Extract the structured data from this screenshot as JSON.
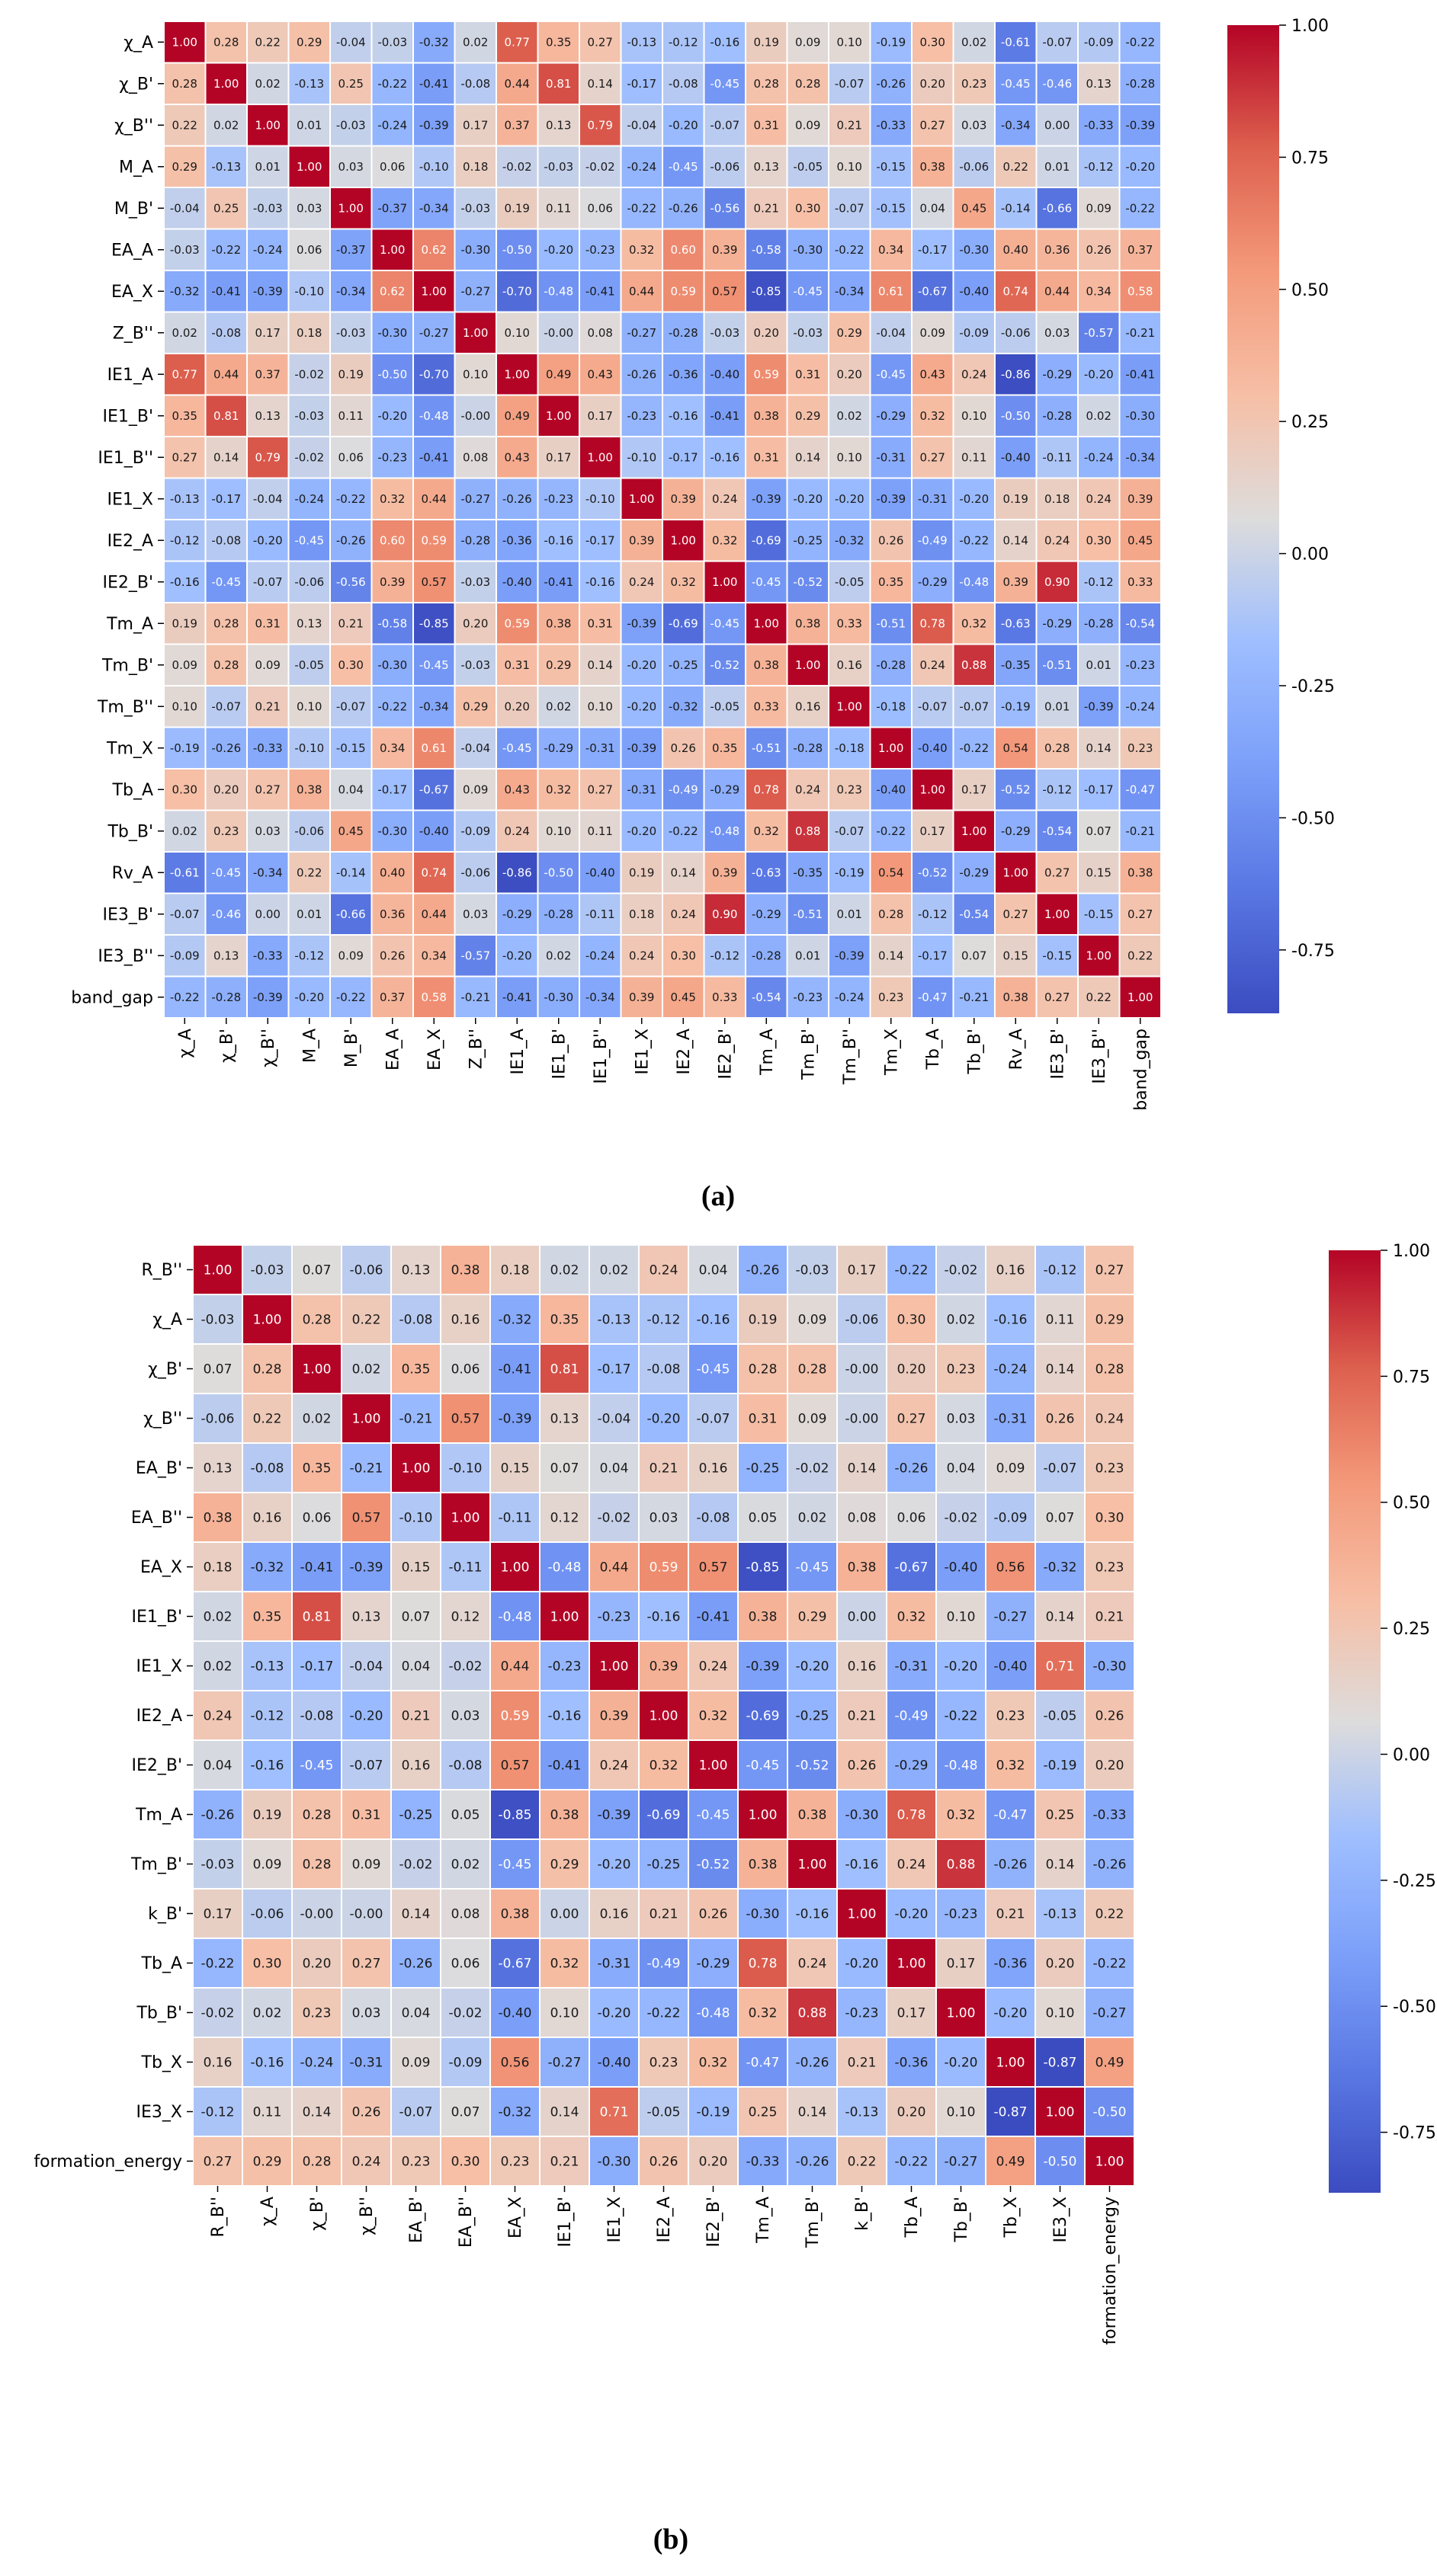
{
  "chart_data": [
    {
      "type": "heatmap",
      "caption": "(a)",
      "labels": [
        "χ_A",
        "χ_B'",
        "χ_B''",
        "M_A",
        "M_B'",
        "EA_A",
        "EA_X",
        "Z_B''",
        "IE1_A",
        "IE1_B'",
        "IE1_B''",
        "IE1_X",
        "IE2_A",
        "IE2_B'",
        "Tm_A",
        "Tm_B'",
        "Tm_B''",
        "Tm_X",
        "Tb_A",
        "Tb_B'",
        "Rv_A",
        "IE3_B'",
        "IE3_B''",
        "band_gap"
      ],
      "matrix": [
        [
          1.0,
          0.28,
          0.22,
          0.29,
          -0.04,
          -0.03,
          -0.32,
          0.02,
          0.77,
          0.35,
          0.27,
          -0.13,
          -0.12,
          -0.16,
          0.19,
          0.09,
          0.1,
          -0.19,
          0.3,
          0.02,
          -0.61,
          -0.07,
          -0.09,
          -0.22
        ],
        [
          0.28,
          1.0,
          0.02,
          -0.13,
          0.25,
          -0.22,
          -0.41,
          -0.08,
          0.44,
          0.81,
          0.14,
          -0.17,
          -0.08,
          -0.45,
          0.28,
          0.28,
          -0.07,
          -0.26,
          0.2,
          0.23,
          -0.45,
          -0.46,
          0.13,
          -0.28
        ],
        [
          0.22,
          0.02,
          1.0,
          0.01,
          -0.03,
          -0.24,
          -0.39,
          0.17,
          0.37,
          0.13,
          0.79,
          -0.04,
          -0.2,
          -0.07,
          0.31,
          0.09,
          0.21,
          -0.33,
          0.27,
          0.03,
          -0.34,
          0.0,
          -0.33,
          -0.39
        ],
        [
          0.29,
          -0.13,
          0.01,
          1.0,
          0.03,
          0.06,
          -0.1,
          0.18,
          -0.02,
          -0.03,
          -0.02,
          -0.24,
          -0.45,
          -0.06,
          0.13,
          -0.05,
          0.1,
          -0.15,
          0.38,
          -0.06,
          0.22,
          0.01,
          -0.12,
          -0.2
        ],
        [
          -0.04,
          0.25,
          -0.03,
          0.03,
          1.0,
          -0.37,
          -0.34,
          -0.03,
          0.19,
          0.11,
          0.06,
          -0.22,
          -0.26,
          -0.56,
          0.21,
          0.3,
          -0.07,
          -0.15,
          0.04,
          0.45,
          -0.14,
          -0.66,
          0.09,
          -0.22
        ],
        [
          -0.03,
          -0.22,
          -0.24,
          0.06,
          -0.37,
          1.0,
          0.62,
          -0.3,
          -0.5,
          -0.2,
          -0.23,
          0.32,
          0.6,
          0.39,
          -0.58,
          -0.3,
          -0.22,
          0.34,
          -0.17,
          -0.3,
          0.4,
          0.36,
          0.26,
          0.37
        ],
        [
          -0.32,
          -0.41,
          -0.39,
          -0.1,
          -0.34,
          0.62,
          1.0,
          -0.27,
          -0.7,
          -0.48,
          -0.41,
          0.44,
          0.59,
          0.57,
          -0.85,
          -0.45,
          -0.34,
          0.61,
          -0.67,
          -0.4,
          0.74,
          0.44,
          0.34,
          0.58
        ],
        [
          0.02,
          -0.08,
          0.17,
          0.18,
          -0.03,
          -0.3,
          -0.27,
          1.0,
          0.1,
          -0.0,
          0.08,
          -0.27,
          -0.28,
          -0.03,
          0.2,
          -0.03,
          0.29,
          -0.04,
          0.09,
          -0.09,
          -0.06,
          0.03,
          -0.57,
          -0.21
        ],
        [
          0.77,
          0.44,
          0.37,
          -0.02,
          0.19,
          -0.5,
          -0.7,
          0.1,
          1.0,
          0.49,
          0.43,
          -0.26,
          -0.36,
          -0.4,
          0.59,
          0.31,
          0.2,
          -0.45,
          0.43,
          0.24,
          -0.86,
          -0.29,
          -0.2,
          -0.41
        ],
        [
          0.35,
          0.81,
          0.13,
          -0.03,
          0.11,
          -0.2,
          -0.48,
          -0.0,
          0.49,
          1.0,
          0.17,
          -0.23,
          -0.16,
          -0.41,
          0.38,
          0.29,
          0.02,
          -0.29,
          0.32,
          0.1,
          -0.5,
          -0.28,
          0.02,
          -0.3
        ],
        [
          0.27,
          0.14,
          0.79,
          -0.02,
          0.06,
          -0.23,
          -0.41,
          0.08,
          0.43,
          0.17,
          1.0,
          -0.1,
          -0.17,
          -0.16,
          0.31,
          0.14,
          0.1,
          -0.31,
          0.27,
          0.11,
          -0.4,
          -0.11,
          -0.24,
          -0.34
        ],
        [
          -0.13,
          -0.17,
          -0.04,
          -0.24,
          -0.22,
          0.32,
          0.44,
          -0.27,
          -0.26,
          -0.23,
          -0.1,
          1.0,
          0.39,
          0.24,
          -0.39,
          -0.2,
          -0.2,
          -0.39,
          -0.31,
          -0.2,
          0.19,
          0.18,
          0.24,
          0.39
        ],
        [
          -0.12,
          -0.08,
          -0.2,
          -0.45,
          -0.26,
          0.6,
          0.59,
          -0.28,
          -0.36,
          -0.16,
          -0.17,
          0.39,
          1.0,
          0.32,
          -0.69,
          -0.25,
          -0.32,
          0.26,
          -0.49,
          -0.22,
          0.14,
          0.24,
          0.3,
          0.45
        ],
        [
          -0.16,
          -0.45,
          -0.07,
          -0.06,
          -0.56,
          0.39,
          0.57,
          -0.03,
          -0.4,
          -0.41,
          -0.16,
          0.24,
          0.32,
          1.0,
          -0.45,
          -0.52,
          -0.05,
          0.35,
          -0.29,
          -0.48,
          0.39,
          0.9,
          -0.12,
          0.33
        ],
        [
          0.19,
          0.28,
          0.31,
          0.13,
          0.21,
          -0.58,
          -0.85,
          0.2,
          0.59,
          0.38,
          0.31,
          -0.39,
          -0.69,
          -0.45,
          1.0,
          0.38,
          0.33,
          -0.51,
          0.78,
          0.32,
          -0.63,
          -0.29,
          -0.28,
          -0.54
        ],
        [
          0.09,
          0.28,
          0.09,
          -0.05,
          0.3,
          -0.3,
          -0.45,
          -0.03,
          0.31,
          0.29,
          0.14,
          -0.2,
          -0.25,
          -0.52,
          0.38,
          1.0,
          0.16,
          -0.28,
          0.24,
          0.88,
          -0.35,
          -0.51,
          0.01,
          -0.23
        ],
        [
          0.1,
          -0.07,
          0.21,
          0.1,
          -0.07,
          -0.22,
          -0.34,
          0.29,
          0.2,
          0.02,
          0.1,
          -0.2,
          -0.32,
          -0.05,
          0.33,
          0.16,
          1.0,
          -0.18,
          -0.07,
          -0.07,
          -0.19,
          0.01,
          -0.39,
          -0.24
        ],
        [
          -0.19,
          -0.26,
          -0.33,
          -0.1,
          -0.15,
          0.34,
          0.61,
          -0.04,
          -0.45,
          -0.29,
          -0.31,
          -0.39,
          0.26,
          0.35,
          -0.51,
          -0.28,
          -0.18,
          1.0,
          -0.4,
          -0.22,
          0.54,
          0.28,
          0.14,
          0.23
        ],
        [
          0.3,
          0.2,
          0.27,
          0.38,
          0.04,
          -0.17,
          -0.67,
          0.09,
          0.43,
          0.32,
          0.27,
          -0.31,
          -0.49,
          -0.29,
          0.78,
          0.24,
          0.23,
          -0.4,
          1.0,
          0.17,
          -0.52,
          -0.12,
          -0.17,
          -0.47
        ],
        [
          0.02,
          0.23,
          0.03,
          -0.06,
          0.45,
          -0.3,
          -0.4,
          -0.09,
          0.24,
          0.1,
          0.11,
          -0.2,
          -0.22,
          -0.48,
          0.32,
          0.88,
          -0.07,
          -0.22,
          0.17,
          1.0,
          -0.29,
          -0.54,
          0.07,
          -0.21
        ],
        [
          -0.61,
          -0.45,
          -0.34,
          0.22,
          -0.14,
          0.4,
          0.74,
          -0.06,
          -0.86,
          -0.5,
          -0.4,
          0.19,
          0.14,
          0.39,
          -0.63,
          -0.35,
          -0.19,
          0.54,
          -0.52,
          -0.29,
          1.0,
          0.27,
          0.15,
          0.38
        ],
        [
          -0.07,
          -0.46,
          0.0,
          0.01,
          -0.66,
          0.36,
          0.44,
          0.03,
          -0.29,
          -0.28,
          -0.11,
          0.18,
          0.24,
          0.9,
          -0.29,
          -0.51,
          0.01,
          0.28,
          -0.12,
          -0.54,
          0.27,
          1.0,
          -0.15,
          0.27
        ],
        [
          -0.09,
          0.13,
          -0.33,
          -0.12,
          0.09,
          0.26,
          0.34,
          -0.57,
          -0.2,
          0.02,
          -0.24,
          0.24,
          0.3,
          -0.12,
          -0.28,
          0.01,
          -0.39,
          0.14,
          -0.17,
          0.07,
          0.15,
          -0.15,
          1.0,
          0.22
        ],
        [
          -0.22,
          -0.28,
          -0.39,
          -0.2,
          -0.22,
          0.37,
          0.58,
          -0.21,
          -0.41,
          -0.3,
          -0.34,
          0.39,
          0.45,
          0.33,
          -0.54,
          -0.23,
          -0.24,
          0.23,
          -0.47,
          -0.21,
          0.38,
          0.27,
          0.22,
          1.0
        ]
      ],
      "colorbar": {
        "range": [
          -0.87,
          1.0
        ],
        "ticks": [
          1.0,
          0.75,
          0.5,
          0.25,
          0.0,
          -0.25,
          -0.5,
          -0.75
        ],
        "colormap": "coolwarm"
      }
    },
    {
      "type": "heatmap",
      "caption": "(b)",
      "labels": [
        "R_B''",
        "χ_A",
        "χ_B'",
        "χ_B''",
        "EA_B'",
        "EA_B''",
        "EA_X",
        "IE1_B'",
        "IE1_X",
        "IE2_A",
        "IE2_B'",
        "Tm_A",
        "Tm_B'",
        "k_B'",
        "Tb_A",
        "Tb_B'",
        "Tb_X",
        "IE3_X",
        "formation_energy"
      ],
      "matrix": [
        [
          1.0,
          -0.03,
          0.07,
          -0.06,
          0.13,
          0.38,
          0.18,
          0.02,
          0.02,
          0.24,
          0.04,
          -0.26,
          -0.03,
          0.17,
          -0.22,
          -0.02,
          0.16,
          -0.12,
          0.27
        ],
        [
          -0.03,
          1.0,
          0.28,
          0.22,
          -0.08,
          0.16,
          -0.32,
          0.35,
          -0.13,
          -0.12,
          -0.16,
          0.19,
          0.09,
          -0.06,
          0.3,
          0.02,
          -0.16,
          0.11,
          0.29
        ],
        [
          0.07,
          0.28,
          1.0,
          0.02,
          0.35,
          0.06,
          -0.41,
          0.81,
          -0.17,
          -0.08,
          -0.45,
          0.28,
          0.28,
          -0.0,
          0.2,
          0.23,
          -0.24,
          0.14,
          0.28
        ],
        [
          -0.06,
          0.22,
          0.02,
          1.0,
          -0.21,
          0.57,
          -0.39,
          0.13,
          -0.04,
          -0.2,
          -0.07,
          0.31,
          0.09,
          -0.0,
          0.27,
          0.03,
          -0.31,
          0.26,
          0.24
        ],
        [
          0.13,
          -0.08,
          0.35,
          -0.21,
          1.0,
          -0.1,
          0.15,
          0.07,
          0.04,
          0.21,
          0.16,
          -0.25,
          -0.02,
          0.14,
          -0.26,
          0.04,
          0.09,
          -0.07,
          0.23
        ],
        [
          0.38,
          0.16,
          0.06,
          0.57,
          -0.1,
          1.0,
          -0.11,
          0.12,
          -0.02,
          0.03,
          -0.08,
          0.05,
          0.02,
          0.08,
          0.06,
          -0.02,
          -0.09,
          0.07,
          0.3
        ],
        [
          0.18,
          -0.32,
          -0.41,
          -0.39,
          0.15,
          -0.11,
          1.0,
          -0.48,
          0.44,
          0.59,
          0.57,
          -0.85,
          -0.45,
          0.38,
          -0.67,
          -0.4,
          0.56,
          -0.32,
          0.23
        ],
        [
          0.02,
          0.35,
          0.81,
          0.13,
          0.07,
          0.12,
          -0.48,
          1.0,
          -0.23,
          -0.16,
          -0.41,
          0.38,
          0.29,
          0.0,
          0.32,
          0.1,
          -0.27,
          0.14,
          0.21
        ],
        [
          0.02,
          -0.13,
          -0.17,
          -0.04,
          0.04,
          -0.02,
          0.44,
          -0.23,
          1.0,
          0.39,
          0.24,
          -0.39,
          -0.2,
          0.16,
          -0.31,
          -0.2,
          -0.4,
          0.71,
          -0.3
        ],
        [
          0.24,
          -0.12,
          -0.08,
          -0.2,
          0.21,
          0.03,
          0.59,
          -0.16,
          0.39,
          1.0,
          0.32,
          -0.69,
          -0.25,
          0.21,
          -0.49,
          -0.22,
          0.23,
          -0.05,
          0.26
        ],
        [
          0.04,
          -0.16,
          -0.45,
          -0.07,
          0.16,
          -0.08,
          0.57,
          -0.41,
          0.24,
          0.32,
          1.0,
          -0.45,
          -0.52,
          0.26,
          -0.29,
          -0.48,
          0.32,
          -0.19,
          0.2
        ],
        [
          -0.26,
          0.19,
          0.28,
          0.31,
          -0.25,
          0.05,
          -0.85,
          0.38,
          -0.39,
          -0.69,
          -0.45,
          1.0,
          0.38,
          -0.3,
          0.78,
          0.32,
          -0.47,
          0.25,
          -0.33
        ],
        [
          -0.03,
          0.09,
          0.28,
          0.09,
          -0.02,
          0.02,
          -0.45,
          0.29,
          -0.2,
          -0.25,
          -0.52,
          0.38,
          1.0,
          -0.16,
          0.24,
          0.88,
          -0.26,
          0.14,
          -0.26
        ],
        [
          0.17,
          -0.06,
          -0.0,
          -0.0,
          0.14,
          0.08,
          0.38,
          0.0,
          0.16,
          0.21,
          0.26,
          -0.3,
          -0.16,
          1.0,
          -0.2,
          -0.23,
          0.21,
          -0.13,
          0.22
        ],
        [
          -0.22,
          0.3,
          0.2,
          0.27,
          -0.26,
          0.06,
          -0.67,
          0.32,
          -0.31,
          -0.49,
          -0.29,
          0.78,
          0.24,
          -0.2,
          1.0,
          0.17,
          -0.36,
          0.2,
          -0.22
        ],
        [
          -0.02,
          0.02,
          0.23,
          0.03,
          0.04,
          -0.02,
          -0.4,
          0.1,
          -0.2,
          -0.22,
          -0.48,
          0.32,
          0.88,
          -0.23,
          0.17,
          1.0,
          -0.2,
          0.1,
          -0.27
        ],
        [
          0.16,
          -0.16,
          -0.24,
          -0.31,
          0.09,
          -0.09,
          0.56,
          -0.27,
          -0.4,
          0.23,
          0.32,
          -0.47,
          -0.26,
          0.21,
          -0.36,
          -0.2,
          1.0,
          -0.87,
          0.49
        ],
        [
          -0.12,
          0.11,
          0.14,
          0.26,
          -0.07,
          0.07,
          -0.32,
          0.14,
          0.71,
          -0.05,
          -0.19,
          0.25,
          0.14,
          -0.13,
          0.2,
          0.1,
          -0.87,
          1.0,
          -0.5
        ],
        [
          0.27,
          0.29,
          0.28,
          0.24,
          0.23,
          0.3,
          0.23,
          0.21,
          -0.3,
          0.26,
          0.2,
          -0.33,
          -0.26,
          0.22,
          -0.22,
          -0.27,
          0.49,
          -0.5,
          1.0
        ]
      ],
      "colorbar": {
        "range": [
          -0.87,
          1.0
        ],
        "ticks": [
          1.0,
          0.75,
          0.5,
          0.25,
          0.0,
          -0.25,
          -0.5,
          -0.75
        ],
        "colormap": "coolwarm"
      }
    }
  ]
}
